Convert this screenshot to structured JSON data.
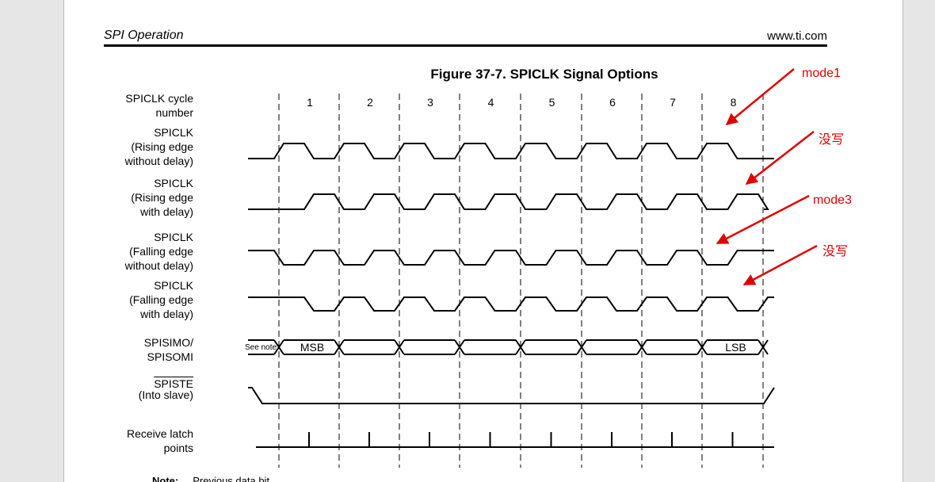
{
  "header": {
    "section": "SPI Operation",
    "site": "www.ti.com"
  },
  "figure": {
    "title": "Figure 37-7. SPICLK Signal Options",
    "cycle_label": [
      "SPICLK cycle",
      "number"
    ],
    "cycles": [
      "1",
      "2",
      "3",
      "4",
      "5",
      "6",
      "7",
      "8"
    ],
    "signals": {
      "rise_nodelay": [
        "SPICLK",
        "(Rising edge",
        "without delay)"
      ],
      "rise_delay": [
        "SPICLK",
        "(Rising edge",
        "with delay)"
      ],
      "fall_nodelay": [
        "SPICLK",
        "(Falling edge",
        "without delay)"
      ],
      "fall_delay": [
        "SPICLK",
        "(Falling edge",
        "with delay)"
      ],
      "data": [
        "SPISIMO/",
        "SPISOMI"
      ],
      "ste_name": "SPISTE",
      "ste_sub": "(Into slave)",
      "latch": [
        "Receive latch",
        "points"
      ]
    },
    "data_labels": {
      "see_note": "See note",
      "msb": "MSB",
      "lsb": "LSB"
    }
  },
  "note": {
    "label": "Note:",
    "text": "Previous data bit"
  },
  "annotations": [
    {
      "text": "mode1"
    },
    {
      "text": "没写"
    },
    {
      "text": "mode3"
    },
    {
      "text": "没写"
    }
  ],
  "colors": {
    "annotation": "#e00000",
    "page": "#ffffff",
    "background": "#e6e6e6"
  }
}
